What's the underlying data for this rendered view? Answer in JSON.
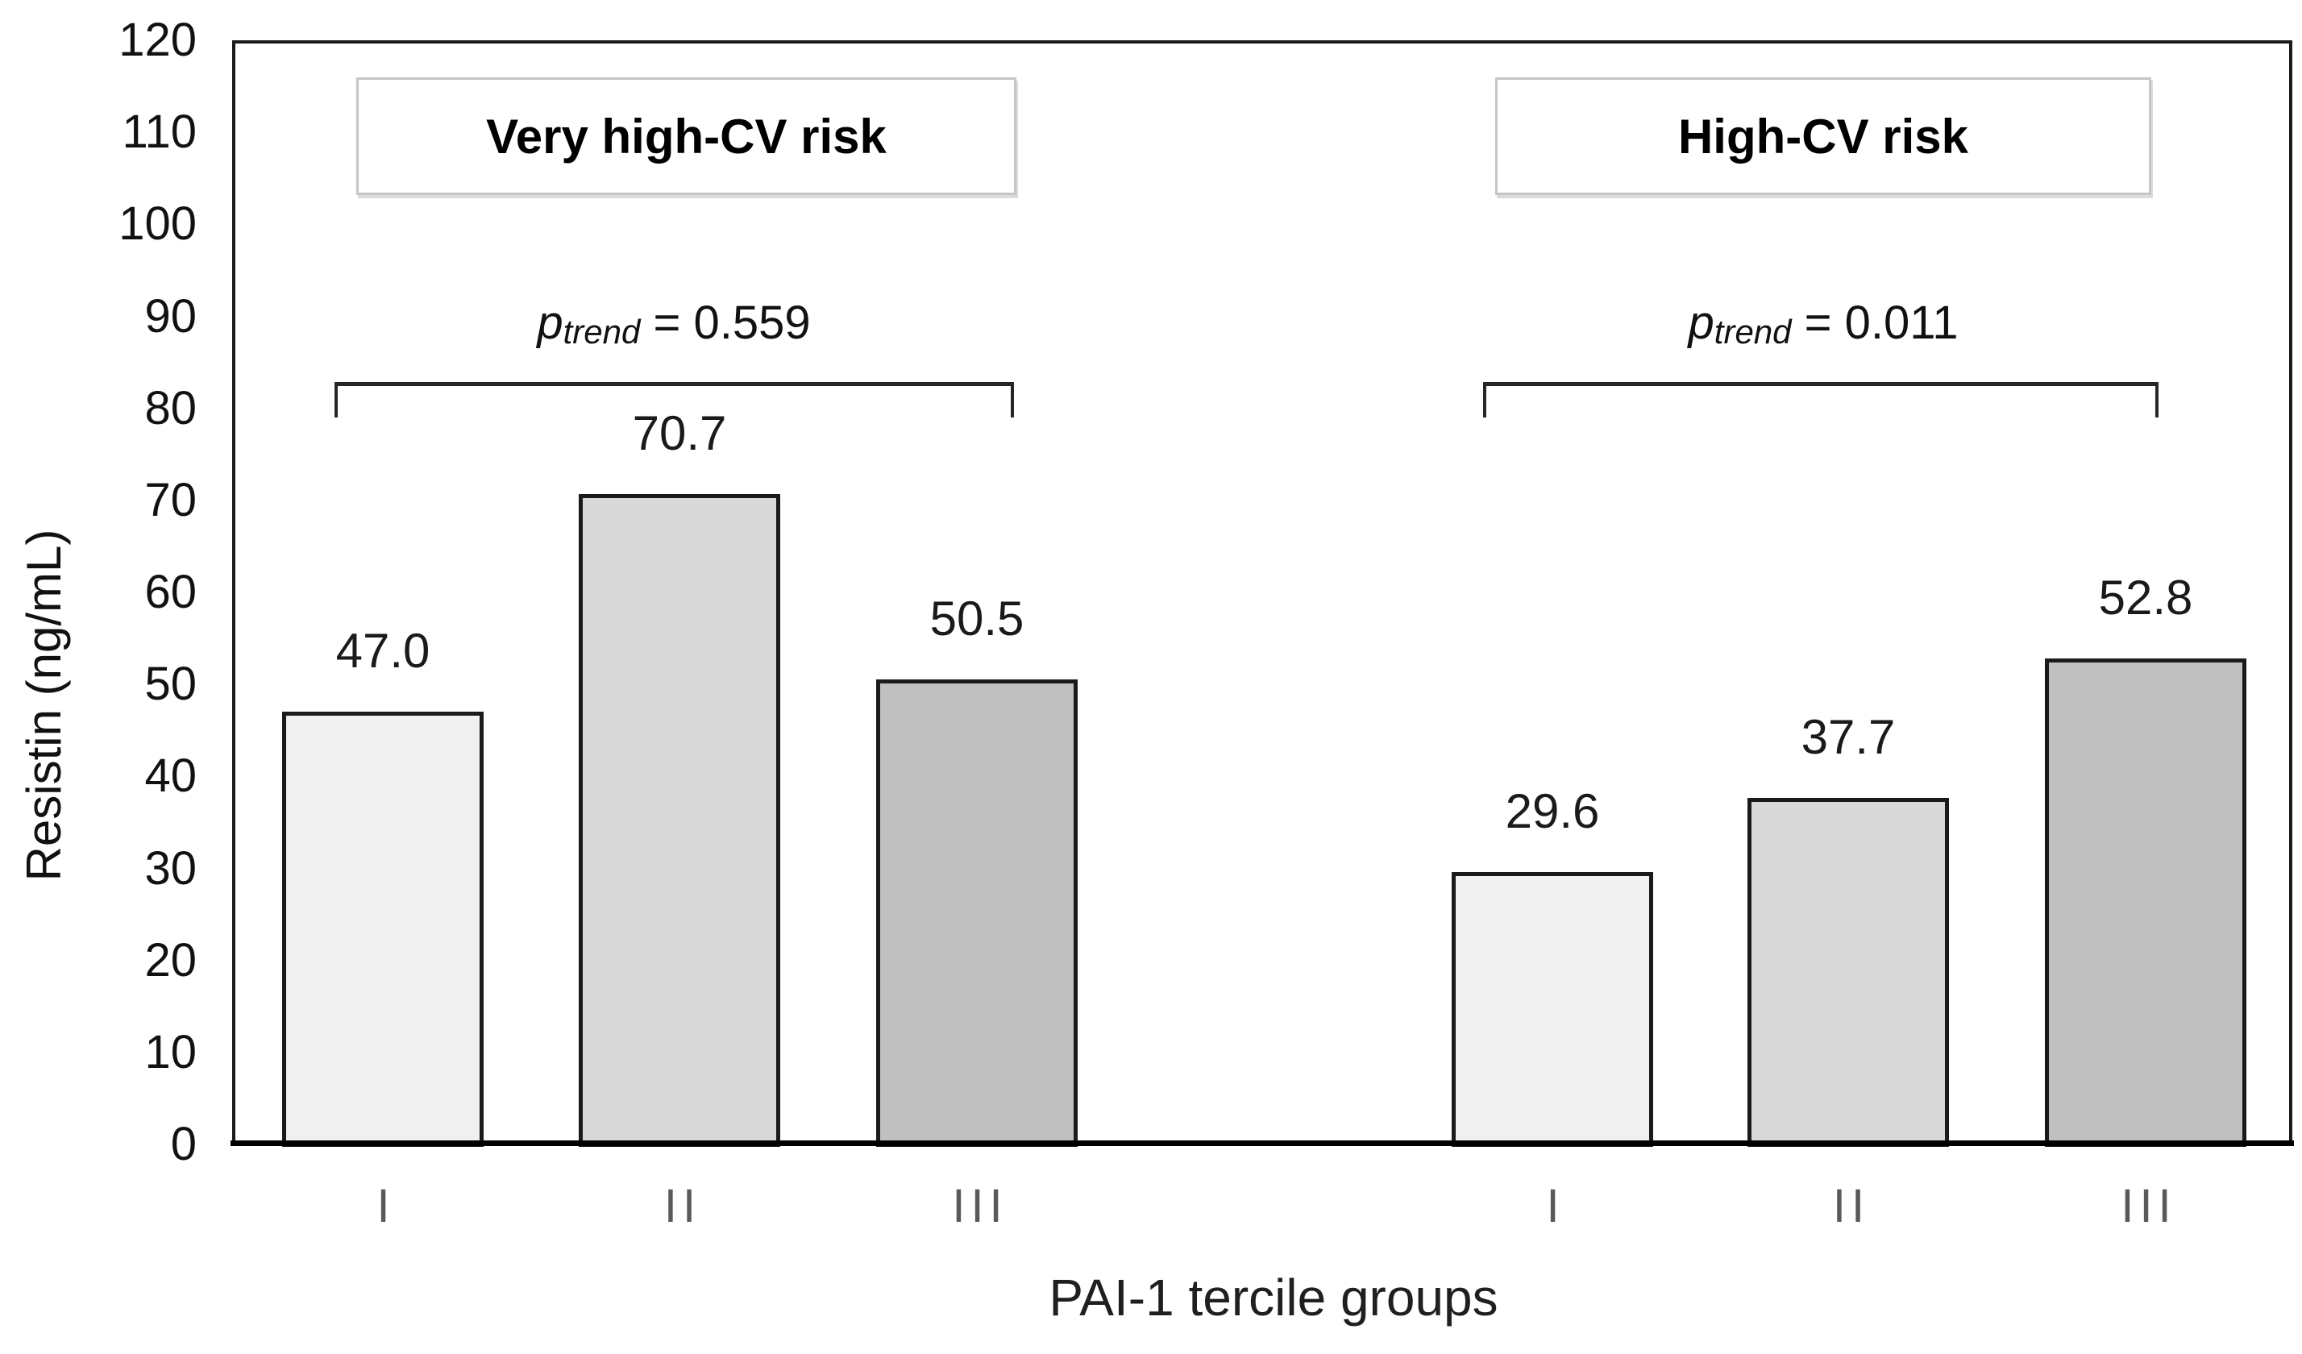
{
  "chart_data": {
    "type": "bar",
    "title": "",
    "ylabel": "Resistin (ng/mL)",
    "xlabel": "PAI-1 tercile groups",
    "ylim": [
      0,
      120
    ],
    "ytick_step": 10,
    "ytick_labels": [
      "0",
      "10",
      "20",
      "30",
      "40",
      "50",
      "60",
      "70",
      "80",
      "90",
      "100",
      "110",
      "120"
    ],
    "categories": [
      "I",
      "II",
      "III"
    ],
    "grid": false,
    "legend_position": "none",
    "bar_fill_colors": [
      "#f0f0f0",
      "#d9d9d9",
      "#c0c0c0"
    ],
    "bar_border_color": "#1a1a1a",
    "p_label_parts": {
      "variable": "p",
      "subscript": "trend",
      "equals": "="
    },
    "groups": [
      {
        "label": "Very high-CV risk",
        "p_value": "0.559",
        "values": [
          47.0,
          70.7,
          50.5
        ],
        "value_labels": [
          "47.0",
          "70.7",
          "50.5"
        ]
      },
      {
        "label": "High-CV risk",
        "p_value": "0.011",
        "values": [
          29.6,
          37.7,
          52.8
        ],
        "value_labels": [
          "29.6",
          "37.7",
          "52.8"
        ]
      }
    ]
  }
}
